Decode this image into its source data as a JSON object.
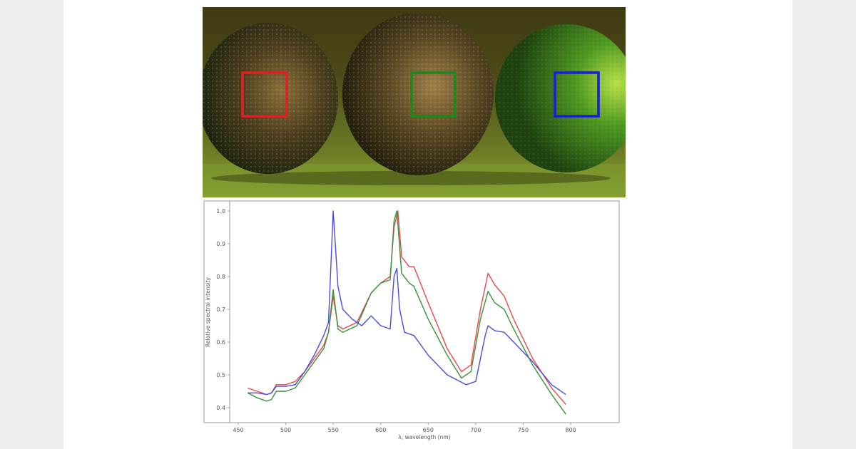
{
  "figure": {
    "photo": {
      "description": "Three citrus fruits on green surface with colored ROI boxes",
      "roi_boxes": [
        {
          "label": "left fruit ROI",
          "color": "#e02020"
        },
        {
          "label": "middle fruit ROI",
          "color": "#1a8a1a"
        },
        {
          "label": "right fruit ROI",
          "color": "#1a1ae0"
        }
      ]
    }
  },
  "chart_data": {
    "type": "line",
    "title": "",
    "xlabel": "λ, wavelength (nm)",
    "ylabel": "Relative spectral intensity",
    "xlim": [
      450,
      800
    ],
    "ylim": [
      0.37,
      1.03
    ],
    "xticks": [
      450,
      500,
      550,
      600,
      650,
      700,
      750,
      800
    ],
    "yticks": [
      0.4,
      0.5,
      0.6,
      0.7,
      0.8,
      0.9,
      1.0
    ],
    "xtick_labels": [
      "450",
      "500",
      "550",
      "600",
      "650",
      "700",
      "750",
      "800"
    ],
    "ytick_labels": [
      "0.4",
      "0.5",
      "0.6",
      "0.7",
      "0.8",
      "0.9",
      "1.0"
    ],
    "grid": false,
    "legend": null,
    "series": [
      {
        "name": "red ROI",
        "color": "#e8474a",
        "x": [
          460,
          470,
          480,
          485,
          490,
          495,
          500,
          510,
          520,
          530,
          540,
          545,
          550,
          555,
          560,
          575,
          590,
          600,
          610,
          614,
          618,
          622,
          630,
          635,
          650,
          670,
          685,
          695,
          705,
          713,
          720,
          730,
          740,
          760,
          780,
          795
        ],
        "values": [
          0.46,
          0.45,
          0.44,
          0.445,
          0.47,
          0.47,
          0.47,
          0.48,
          0.51,
          0.55,
          0.59,
          0.63,
          0.74,
          0.65,
          0.64,
          0.66,
          0.75,
          0.78,
          0.8,
          0.95,
          1.0,
          0.86,
          0.83,
          0.83,
          0.72,
          0.58,
          0.51,
          0.53,
          0.7,
          0.81,
          0.775,
          0.74,
          0.67,
          0.55,
          0.46,
          0.41
        ]
      },
      {
        "name": "green ROI",
        "color": "#3a8f3a",
        "x": [
          460,
          470,
          480,
          485,
          490,
          495,
          500,
          510,
          520,
          530,
          540,
          545,
          550,
          555,
          560,
          575,
          590,
          600,
          610,
          614,
          617,
          622,
          630,
          635,
          650,
          670,
          685,
          695,
          705,
          713,
          720,
          730,
          740,
          760,
          780,
          795
        ],
        "values": [
          0.445,
          0.43,
          0.42,
          0.425,
          0.45,
          0.45,
          0.45,
          0.46,
          0.5,
          0.54,
          0.58,
          0.63,
          0.76,
          0.64,
          0.63,
          0.65,
          0.75,
          0.78,
          0.79,
          0.97,
          1.0,
          0.81,
          0.78,
          0.77,
          0.67,
          0.56,
          0.49,
          0.51,
          0.67,
          0.755,
          0.72,
          0.7,
          0.64,
          0.53,
          0.44,
          0.38
        ]
      },
      {
        "name": "blue ROI",
        "color": "#4a4ae0",
        "x": [
          460,
          470,
          480,
          485,
          490,
          495,
          500,
          510,
          520,
          530,
          540,
          545,
          550,
          555,
          560,
          570,
          580,
          590,
          600,
          610,
          614,
          617,
          620,
          625,
          635,
          650,
          670,
          690,
          700,
          710,
          713,
          720,
          730,
          740,
          760,
          780,
          795
        ],
        "values": [
          0.445,
          0.445,
          0.44,
          0.445,
          0.465,
          0.465,
          0.465,
          0.47,
          0.51,
          0.56,
          0.62,
          0.66,
          1.0,
          0.77,
          0.7,
          0.67,
          0.65,
          0.68,
          0.65,
          0.64,
          0.8,
          0.825,
          0.7,
          0.63,
          0.62,
          0.56,
          0.5,
          0.47,
          0.48,
          0.62,
          0.65,
          0.635,
          0.63,
          0.6,
          0.54,
          0.47,
          0.44
        ]
      }
    ]
  }
}
